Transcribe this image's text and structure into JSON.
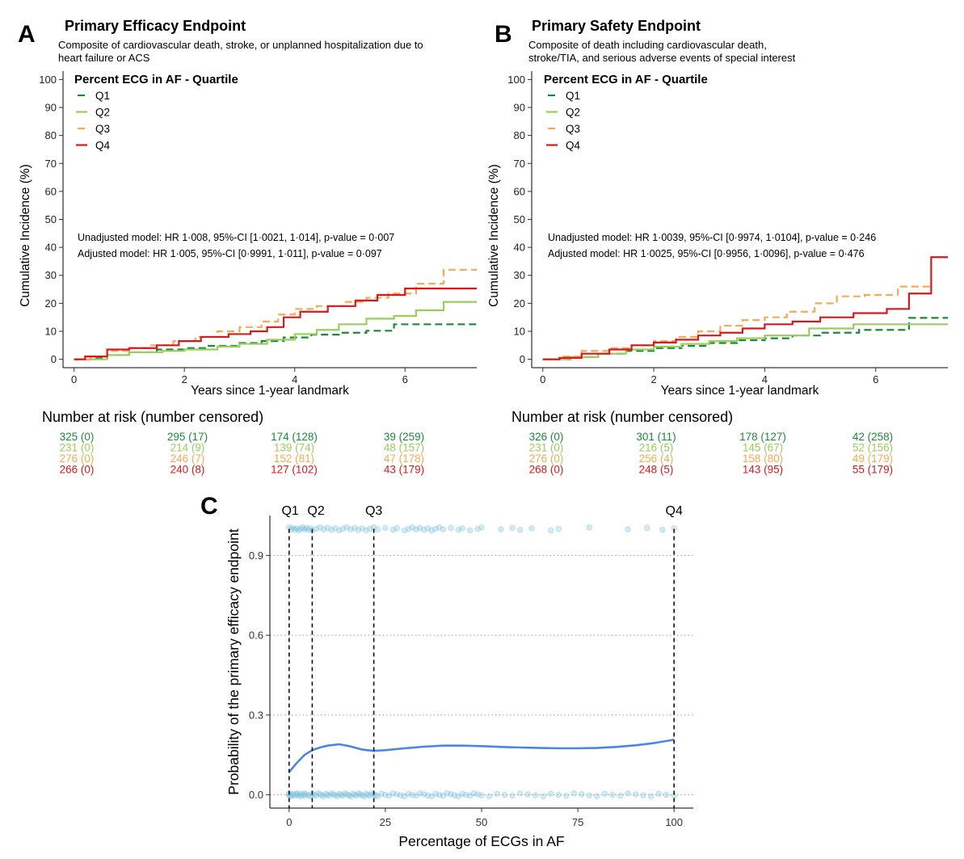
{
  "panels": {
    "A": {
      "letter": "A",
      "title": "Primary Efficacy Endpoint",
      "subtitle_lines": [
        "Composite of cardiovascular death, stroke, or unplanned hospitalization due to",
        "heart failure or ACS"
      ],
      "legend_title": "Percent ECG in AF - Quartile",
      "annotation_lines": [
        "Unadjusted model: HR 1·008, 95%-CI [1·0021, 1·014], p-value = 0·007",
        "Adjusted model: HR 1·005, 95%-CI [0·9991, 1·011], p-value = 0·097"
      ],
      "risk_table": {
        "title": "Number at risk (number censored)",
        "rows": [
          {
            "quartile": "Q1",
            "cells": [
              "325 (0)",
              "295 (17)",
              "174 (128)",
              "39 (259)"
            ]
          },
          {
            "quartile": "Q2",
            "cells": [
              "231 (0)",
              "214 (9)",
              "139 (74)",
              "48 (157)"
            ]
          },
          {
            "quartile": "Q3",
            "cells": [
              "276 (0)",
              "246 (7)",
              "152 (81)",
              "47 (178)"
            ]
          },
          {
            "quartile": "Q4",
            "cells": [
              "266 (0)",
              "240 (8)",
              "127 (102)",
              "43 (179)"
            ]
          }
        ]
      }
    },
    "B": {
      "letter": "B",
      "title": "Primary Safety Endpoint",
      "subtitle_lines": [
        "Composite of death including cardiovascular death,",
        "stroke/TIA, and serious adverse events of special interest"
      ],
      "legend_title": "Percent ECG in AF - Quartile",
      "annotation_lines": [
        "Unadjusted model: HR 1·0039, 95%-CI [0·9974, 1·0104], p-value = 0·246",
        "Adjusted model: HR 1·0025, 95%-CI [0·9956, 1·0096], p-value = 0·476"
      ],
      "risk_table": {
        "title": "Number at risk (number censored)",
        "rows": [
          {
            "quartile": "Q1",
            "cells": [
              "326 (0)",
              "301 (11)",
              "178 (127)",
              "42 (258)"
            ]
          },
          {
            "quartile": "Q2",
            "cells": [
              "231 (0)",
              "216 (5)",
              "145 (67)",
              "52 (156)"
            ]
          },
          {
            "quartile": "Q3",
            "cells": [
              "276 (0)",
              "256 (4)",
              "158 (80)",
              "49 (179)"
            ]
          },
          {
            "quartile": "Q4",
            "cells": [
              "268 (0)",
              "248 (5)",
              "143 (95)",
              "55 (179)"
            ]
          }
        ]
      }
    },
    "C": {
      "letter": "C"
    }
  },
  "colors": {
    "Q1": "#1a8a3a",
    "Q2": "#9acd5a",
    "Q3": "#f5aa55",
    "Q4": "#d7191c",
    "smooth": "#4a86e8",
    "points": "#7ec4dc"
  },
  "chart_data": [
    {
      "type": "line",
      "panel": "A",
      "xlabel": "Years since 1-year landmark",
      "ylabel": "Cumulative Incidence (%)",
      "xlim": [
        -0.2,
        7.3
      ],
      "ylim": [
        -3,
        103
      ],
      "xticks": [
        0,
        2,
        4,
        6
      ],
      "yticks": [
        0,
        10,
        20,
        30,
        40,
        50,
        60,
        70,
        80,
        90,
        100
      ],
      "legend_position": "top-left",
      "grid": false,
      "step": true,
      "series": [
        {
          "name": "Q1",
          "dashed": true,
          "x": [
            0,
            0.3,
            0.6,
            1.0,
            1.5,
            2.0,
            2.4,
            3.0,
            3.4,
            3.8,
            4.3,
            4.8,
            5.3,
            5.8,
            7.3
          ],
          "y": [
            0,
            0.5,
            1.5,
            2.5,
            3.5,
            4.0,
            4.8,
            5.8,
            6.5,
            7.8,
            8.8,
            9.5,
            10.2,
            12.5,
            12.5
          ]
        },
        {
          "name": "Q2",
          "dashed": false,
          "x": [
            0,
            0.6,
            1.0,
            1.6,
            2.0,
            2.6,
            3.0,
            3.5,
            4.0,
            4.4,
            4.8,
            5.3,
            5.8,
            6.2,
            6.7,
            7.3
          ],
          "y": [
            0,
            1.5,
            2.5,
            3.0,
            3.5,
            4.5,
            5.5,
            7.0,
            9.0,
            10.5,
            12.5,
            14.5,
            15.5,
            17.5,
            20.5,
            20.5
          ]
        },
        {
          "name": "Q3",
          "dashed": true,
          "x": [
            0,
            0.3,
            0.6,
            1.0,
            1.4,
            1.8,
            2.2,
            2.6,
            3.0,
            3.4,
            3.7,
            4.0,
            4.4,
            4.9,
            5.3,
            5.7,
            6.2,
            6.7,
            7.3
          ],
          "y": [
            0,
            1.0,
            3.0,
            4.0,
            5.0,
            6.5,
            8.0,
            10.0,
            11.5,
            13.5,
            16.0,
            18.0,
            19.0,
            20.5,
            22.0,
            23.5,
            27.0,
            32.0,
            32.0
          ]
        },
        {
          "name": "Q4",
          "dashed": false,
          "x": [
            0,
            0.2,
            0.6,
            1.0,
            1.5,
            1.9,
            2.3,
            2.8,
            3.2,
            3.5,
            3.8,
            4.1,
            4.6,
            5.1,
            5.5,
            6.0,
            7.3
          ],
          "y": [
            0,
            1.0,
            3.5,
            4.0,
            5.0,
            6.5,
            8.0,
            9.0,
            10.0,
            11.5,
            15.0,
            17.0,
            19.0,
            21.0,
            23.0,
            25.3,
            25.3
          ]
        }
      ]
    },
    {
      "type": "line",
      "panel": "B",
      "xlabel": "Years since 1-year landmark",
      "ylabel": "Cumulative Incidence (%)",
      "xlim": [
        -0.2,
        7.3
      ],
      "ylim": [
        -3,
        103
      ],
      "xticks": [
        0,
        2,
        4,
        6
      ],
      "yticks": [
        0,
        10,
        20,
        30,
        40,
        50,
        60,
        70,
        80,
        90,
        100
      ],
      "legend_position": "top-left",
      "grid": false,
      "step": true,
      "series": [
        {
          "name": "Q1",
          "dashed": true,
          "x": [
            0,
            0.5,
            1.0,
            1.5,
            2.0,
            2.5,
            3.0,
            3.5,
            4.0,
            4.5,
            5.0,
            5.7,
            6.6,
            7.3
          ],
          "y": [
            0,
            0.8,
            2.0,
            3.0,
            4.0,
            4.8,
            5.8,
            6.8,
            7.5,
            8.5,
            9.5,
            10.5,
            14.8,
            14.8
          ]
        },
        {
          "name": "Q2",
          "dashed": false,
          "x": [
            0,
            0.5,
            1.0,
            1.5,
            2.0,
            2.5,
            3.0,
            3.5,
            4.0,
            4.8,
            5.6,
            6.5,
            7.3
          ],
          "y": [
            0,
            0.8,
            2.0,
            3.5,
            4.5,
            5.5,
            6.5,
            7.5,
            8.5,
            11.0,
            12.5,
            12.5,
            12.5
          ]
        },
        {
          "name": "Q3",
          "dashed": true,
          "x": [
            0,
            0.3,
            0.7,
            1.2,
            1.6,
            2.0,
            2.4,
            2.8,
            3.2,
            3.6,
            4.0,
            4.4,
            4.9,
            5.3,
            5.8,
            6.4,
            7.0
          ],
          "y": [
            0,
            1.0,
            3.0,
            4.0,
            5.0,
            6.5,
            8.0,
            10.0,
            12.0,
            14.0,
            15.0,
            17.0,
            20.0,
            22.5,
            23.0,
            26.0,
            26.0
          ]
        },
        {
          "name": "Q4",
          "dashed": false,
          "x": [
            0,
            0.3,
            0.7,
            1.2,
            1.6,
            2.0,
            2.4,
            2.8,
            3.2,
            3.6,
            4.0,
            4.5,
            5.0,
            5.6,
            6.2,
            6.6,
            7.0,
            7.3
          ],
          "y": [
            0,
            0.5,
            2.0,
            3.5,
            5.0,
            6.0,
            7.0,
            8.5,
            9.5,
            11.0,
            12.5,
            13.5,
            15.0,
            16.5,
            18.0,
            23.5,
            36.5,
            36.5
          ]
        }
      ]
    },
    {
      "type": "scatter",
      "panel": "C",
      "xlabel": "Percentage of ECGs in AF",
      "ylabel": "Probability of the primary efficacy endpoint",
      "xlim": [
        -5,
        105
      ],
      "ylim": [
        -0.05,
        1.05
      ],
      "xticks": [
        0,
        25,
        50,
        75,
        100
      ],
      "yticks": [
        0.0,
        0.3,
        0.6,
        0.9
      ],
      "ytick_labels": [
        "0.0",
        "0.3",
        "0.6",
        "0.9"
      ],
      "grid": true,
      "quartile_lines": [
        {
          "label": "Q1",
          "x": 0
        },
        {
          "label": "Q2",
          "x": 6
        },
        {
          "label": "Q3",
          "x": 22
        },
        {
          "label": "Q4",
          "x": 100
        }
      ],
      "points": {
        "y0_x": [
          0,
          0,
          0,
          0.5,
          1,
          1,
          1.5,
          2,
          2,
          2.5,
          3,
          3,
          3.5,
          4,
          4,
          4.5,
          5,
          5.5,
          6,
          6.5,
          7,
          7.5,
          8,
          8.5,
          9,
          9.5,
          10,
          10.5,
          11,
          11.5,
          12,
          12.5,
          13,
          13.5,
          14,
          14.5,
          15,
          15.5,
          16,
          16.5,
          17,
          17.5,
          18,
          18.5,
          19,
          19.5,
          20,
          20.5,
          21,
          21.5,
          22,
          22.5,
          23,
          24,
          25,
          26,
          27,
          28,
          29,
          30,
          31,
          32,
          33,
          34,
          35,
          36,
          37,
          38,
          39,
          40,
          41,
          42,
          43,
          44,
          45,
          46,
          47,
          48,
          49,
          50,
          52,
          54,
          56,
          58,
          60,
          62,
          64,
          66,
          68,
          70,
          72,
          74,
          76,
          78,
          80,
          82,
          84,
          86,
          88,
          90,
          92,
          94,
          96,
          98,
          100
        ],
        "y1_x": [
          0,
          0.5,
          1,
          1.5,
          2,
          2.5,
          3,
          3.5,
          4,
          4.5,
          5,
          5.5,
          6,
          7,
          8,
          9,
          10,
          11,
          12,
          13,
          14,
          15,
          16,
          17,
          18,
          19,
          20,
          21,
          22,
          23,
          25,
          27,
          28,
          30,
          31,
          32,
          33,
          34,
          35,
          36,
          37,
          38,
          39,
          40,
          42,
          44,
          45,
          47,
          49,
          50,
          55,
          58,
          60,
          63,
          68,
          70,
          78,
          88,
          93,
          97,
          100
        ]
      },
      "smooth": {
        "x": [
          0,
          2,
          4,
          6,
          8,
          10,
          13,
          16,
          19,
          22,
          25,
          30,
          35,
          40,
          45,
          50,
          55,
          60,
          65,
          70,
          75,
          80,
          85,
          90,
          95,
          100
        ],
        "y": [
          0.085,
          0.12,
          0.15,
          0.168,
          0.178,
          0.185,
          0.19,
          0.182,
          0.17,
          0.165,
          0.168,
          0.175,
          0.181,
          0.185,
          0.185,
          0.183,
          0.18,
          0.178,
          0.176,
          0.175,
          0.175,
          0.176,
          0.18,
          0.186,
          0.195,
          0.207
        ]
      }
    }
  ]
}
